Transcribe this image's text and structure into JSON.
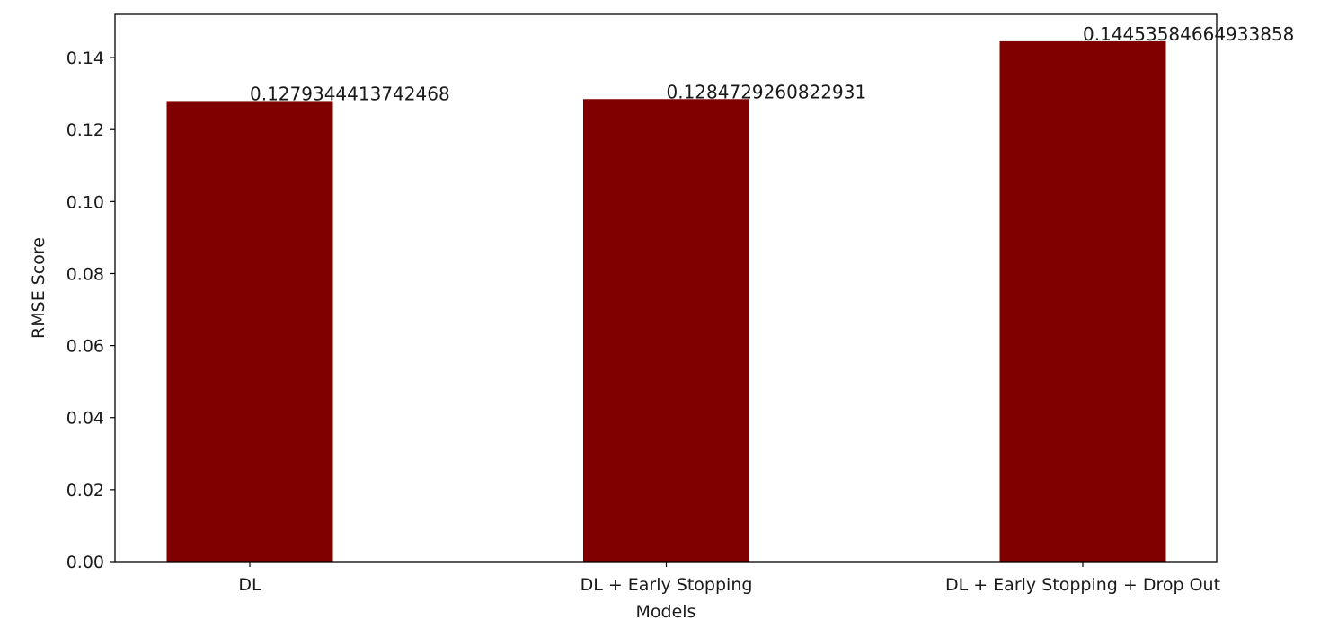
{
  "chart_data": {
    "type": "bar",
    "title": "",
    "xlabel": "Models",
    "ylabel": "RMSE Score",
    "categories": [
      "DL",
      "DL + Early Stopping",
      "DL + Early Stopping + Drop Out"
    ],
    "values": [
      0.1279344413742468,
      0.1284729260822931,
      0.14453584664933858
    ],
    "data_labels": [
      "0.1279344413742468",
      "0.1284729260822931",
      "0.14453584664933858"
    ],
    "ylim": [
      0,
      0.152
    ],
    "yticks": [
      0.0,
      0.02,
      0.04,
      0.06,
      0.08,
      0.1,
      0.12,
      0.14
    ],
    "ytick_labels": [
      "0.00",
      "0.02",
      "0.04",
      "0.06",
      "0.08",
      "0.10",
      "0.12",
      "0.14"
    ],
    "bar_color": "#800000",
    "grid": false,
    "legend": "none"
  }
}
